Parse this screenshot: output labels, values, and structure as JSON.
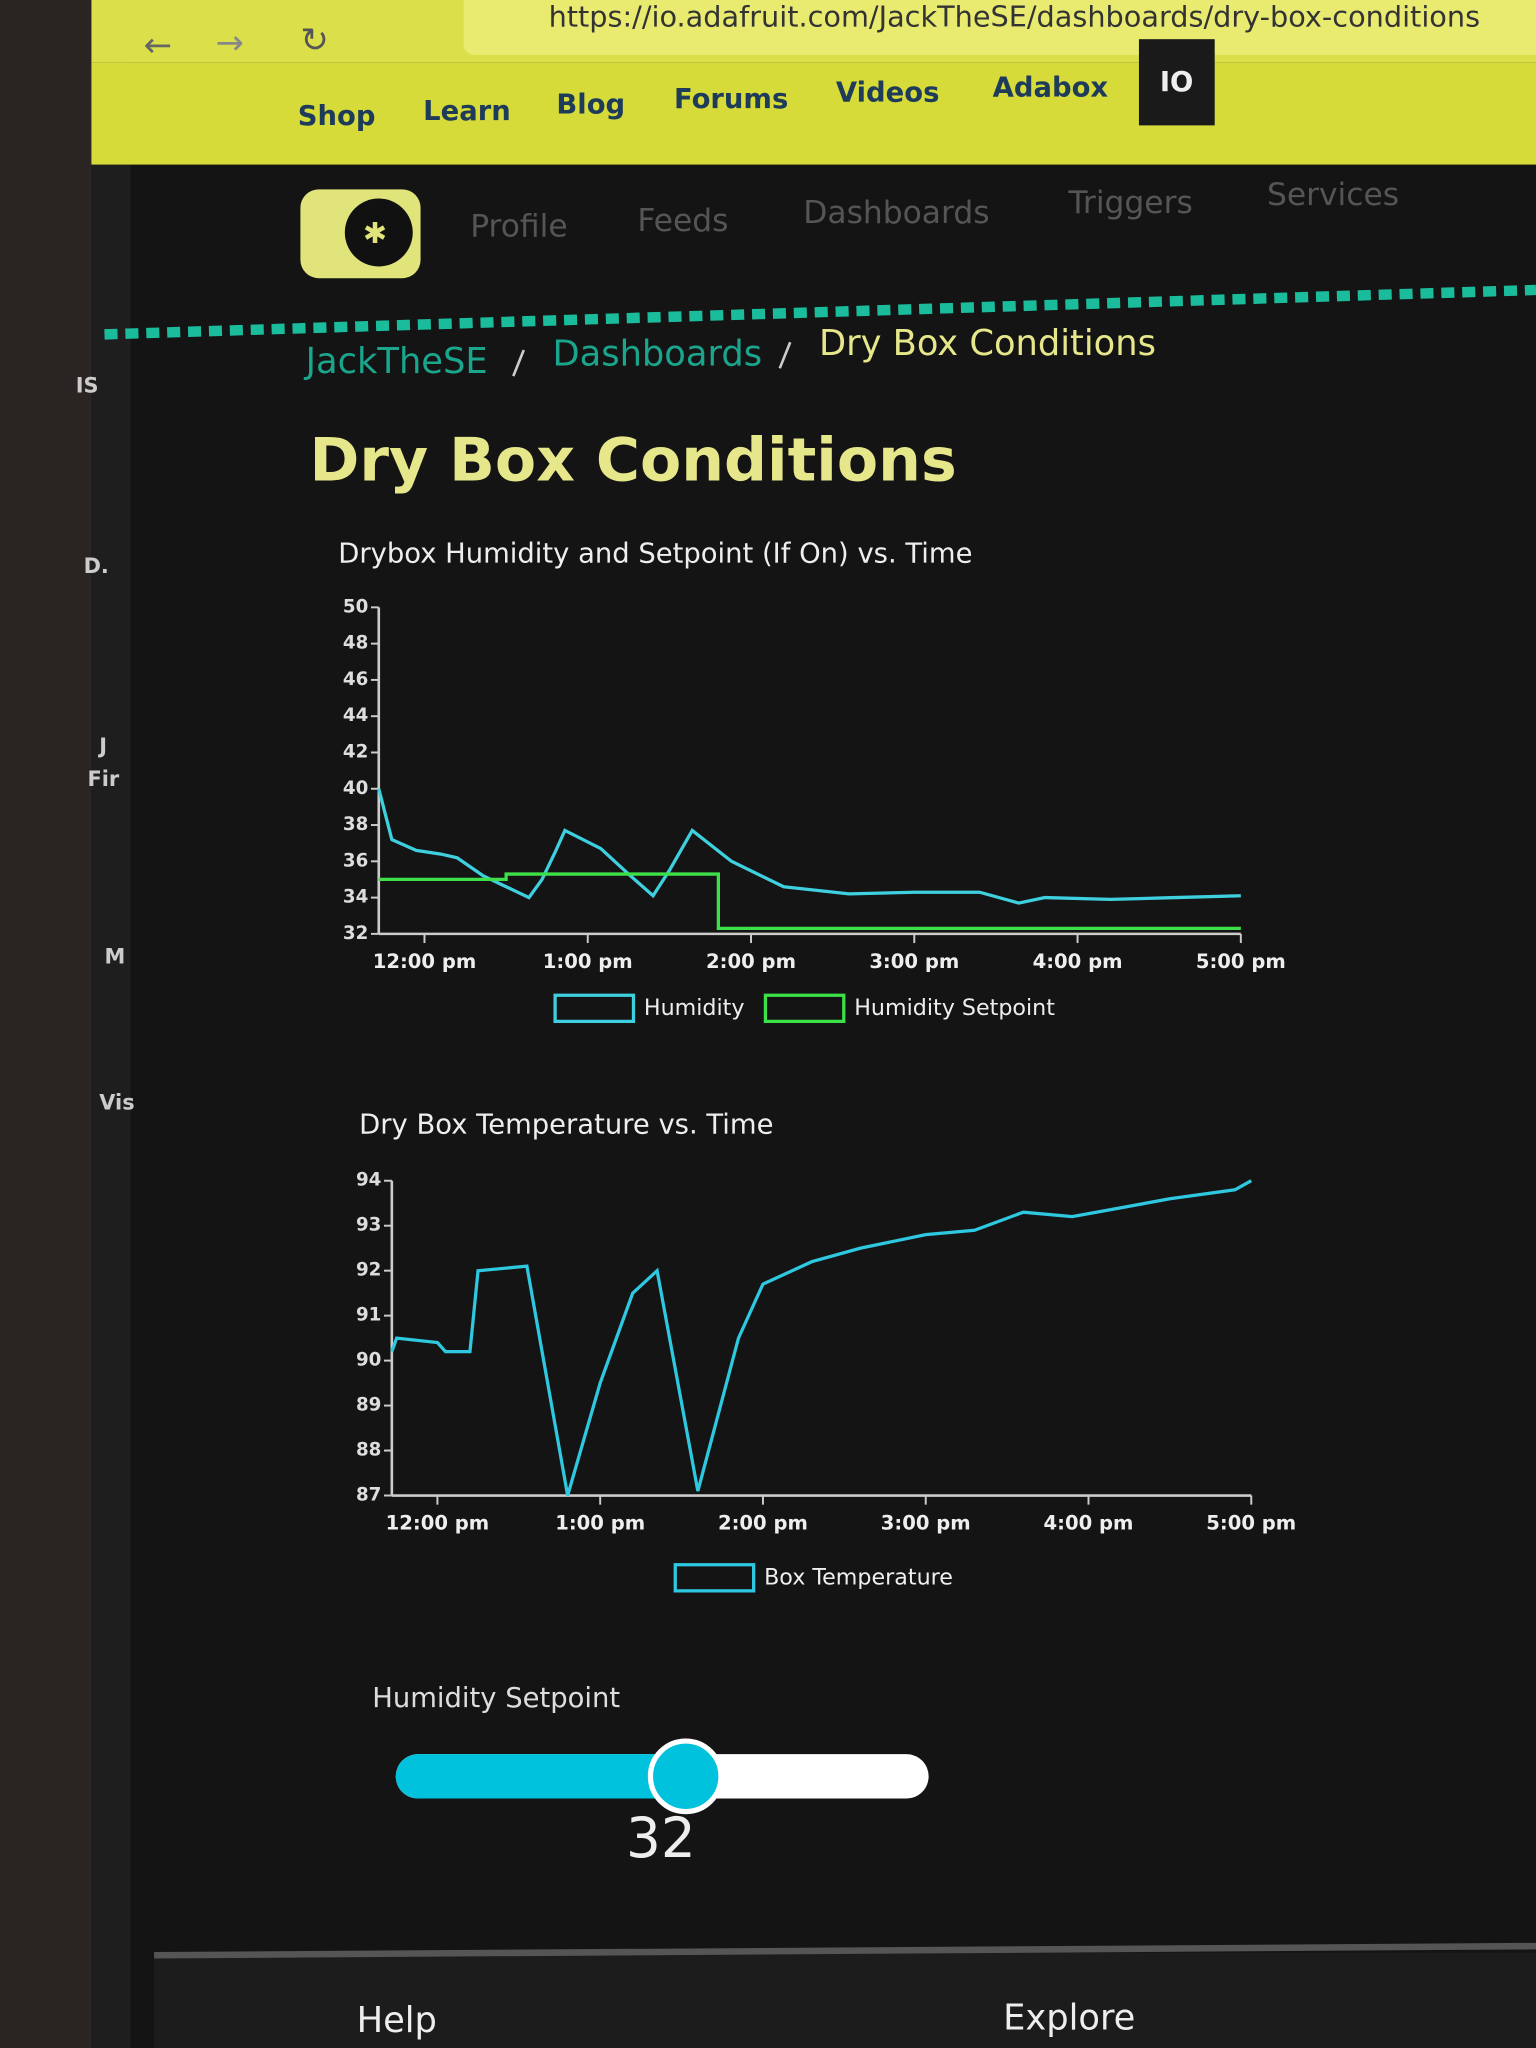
{
  "browser": {
    "url": "https://io.adafruit.com/JackTheSE/dashboards/dry-box-conditions"
  },
  "nav": [
    "Shop",
    "Learn",
    "Blog",
    "Forums",
    "Videos",
    "Adabox",
    "IO"
  ],
  "io_nav": [
    "Profile",
    "Feeds",
    "Dashboards",
    "Triggers",
    "Services"
  ],
  "sidebar": [
    "IS",
    "D.",
    "J",
    "Fir",
    "M",
    "Vis"
  ],
  "breadcrumb": [
    "JackTheSE",
    "Dashboards",
    "Dry Box Conditions"
  ],
  "heading": "Dry Box Conditions",
  "chart_data": [
    {
      "type": "line",
      "title": "Drybox Humidity and Setpoint (If On) vs. Time",
      "xlim": [
        11.72,
        17.0
      ],
      "ylim": [
        32,
        50
      ],
      "xticks": [
        {
          "value": 12,
          "label": "12:00 pm"
        },
        {
          "value": 13,
          "label": "1:00 pm"
        },
        {
          "value": 14,
          "label": "2:00 pm"
        },
        {
          "value": 15,
          "label": "3:00 pm"
        },
        {
          "value": 16,
          "label": "4:00 pm"
        },
        {
          "value": 17,
          "label": "5:00 pm"
        }
      ],
      "yticks": [
        32,
        34,
        36,
        38,
        40,
        42,
        44,
        46,
        48,
        50
      ],
      "series": [
        {
          "name": "Humidity",
          "color": "#3fd0e0",
          "x": [
            11.72,
            11.8,
            11.95,
            12.1,
            12.2,
            12.36,
            12.5,
            12.64,
            12.72,
            12.8,
            12.86,
            13.08,
            13.25,
            13.4,
            13.5,
            13.64,
            13.88,
            14.2,
            14.6,
            15.0,
            15.4,
            15.64,
            15.8,
            16.2,
            16.6,
            17.0
          ],
          "values": [
            40,
            37.2,
            36.6,
            36.4,
            36.2,
            35.2,
            34.6,
            34.0,
            35,
            36.5,
            37.7,
            36.7,
            35.3,
            34.1,
            35.5,
            37.7,
            36,
            34.6,
            34.2,
            34.3,
            34.3,
            33.7,
            34,
            33.9,
            34,
            34.1
          ]
        },
        {
          "name": "Humidity Setpoint",
          "color": "#3ee04a",
          "x": [
            11.72,
            12.5,
            12.5,
            13.8,
            13.8,
            17.0
          ],
          "values": [
            35,
            35,
            35.3,
            35.3,
            32.3,
            32.3
          ]
        }
      ]
    },
    {
      "type": "line",
      "title": "Dry Box Temperature vs. Time",
      "xlim": [
        11.72,
        17.0
      ],
      "ylim": [
        87,
        94
      ],
      "xticks": [
        {
          "value": 12,
          "label": "12:00 pm"
        },
        {
          "value": 13,
          "label": "1:00 pm"
        },
        {
          "value": 14,
          "label": "2:00 pm"
        },
        {
          "value": 15,
          "label": "3:00 pm"
        },
        {
          "value": 16,
          "label": "4:00 pm"
        },
        {
          "value": 17,
          "label": "5:00 pm"
        }
      ],
      "yticks": [
        87,
        88,
        89,
        90,
        91,
        92,
        93,
        94
      ],
      "series": [
        {
          "name": "Box Temperature",
          "color": "#2ec8e0",
          "x": [
            11.72,
            11.75,
            12.0,
            12.05,
            12.2,
            12.25,
            12.55,
            12.8,
            13.0,
            13.2,
            13.35,
            13.6,
            13.85,
            14.0,
            14.3,
            14.6,
            15.0,
            15.3,
            15.6,
            15.9,
            16.2,
            16.5,
            16.9,
            17.0
          ],
          "values": [
            90.2,
            90.5,
            90.4,
            90.2,
            90.2,
            92,
            92.1,
            87,
            89.5,
            91.5,
            92,
            87.1,
            90.5,
            91.7,
            92.2,
            92.5,
            92.8,
            92.9,
            93.3,
            93.2,
            93.4,
            93.6,
            93.8,
            94
          ]
        }
      ]
    }
  ],
  "slider": {
    "label": "Humidity Setpoint",
    "value": 32
  },
  "footer": [
    "Help",
    "Explore"
  ]
}
